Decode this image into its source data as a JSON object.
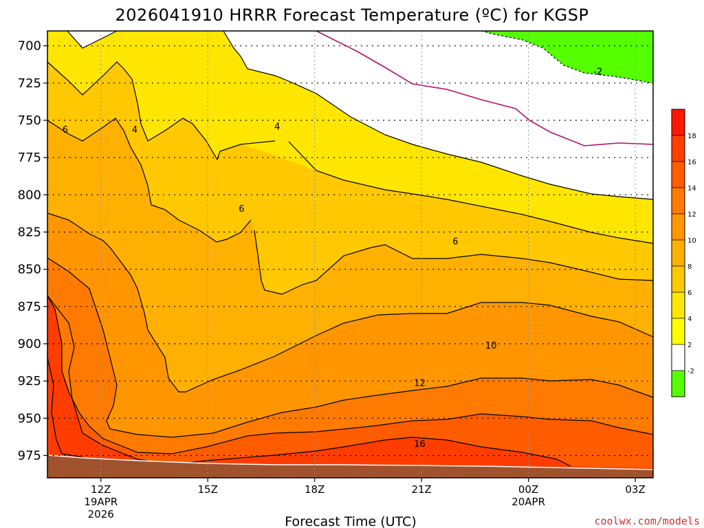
{
  "chart_data": {
    "type": "area",
    "title": "2026041910 HRRR Forecast Temperature (ºC) for KGSP",
    "xlabel": "Forecast Time (UTC)",
    "ylabel": "",
    "y_axis": "pressure (inverted)",
    "ylim": [
      990,
      690
    ],
    "xlim": [
      10.5,
      27.5
    ],
    "yticks": [
      700,
      725,
      750,
      775,
      800,
      825,
      850,
      875,
      900,
      925,
      950,
      975
    ],
    "xticks": [
      {
        "x": 12,
        "label": "12Z",
        "sub": [
          "19APR",
          "2026"
        ]
      },
      {
        "x": 15,
        "label": "15Z",
        "sub": []
      },
      {
        "x": 18,
        "label": "18Z",
        "sub": []
      },
      {
        "x": 21,
        "label": "21Z",
        "sub": []
      },
      {
        "x": 24,
        "label": "00Z",
        "sub": [
          "20APR"
        ]
      },
      {
        "x": 27,
        "label": "03Z",
        "sub": []
      }
    ],
    "grid": true,
    "credit": "coolwx.com/models",
    "colorbar": {
      "levels": [
        18,
        16,
        14,
        12,
        10,
        8,
        6,
        4,
        2,
        -2
      ],
      "colors": [
        "#ff1800",
        "#ff3d00",
        "#ff5c00",
        "#ff7a00",
        "#ff9600",
        "#ffb000",
        "#ffc800",
        "#ffe600",
        "#ffff00",
        "#ffffff",
        "#55ff00"
      ]
    },
    "contour_labels": [
      {
        "x": 11.0,
        "p": 756,
        "text": "6"
      },
      {
        "x": 12.95,
        "p": 756,
        "text": "4"
      },
      {
        "x": 16.95,
        "p": 754,
        "text": "4"
      },
      {
        "x": 15.95,
        "p": 809,
        "text": "6"
      },
      {
        "x": 21.95,
        "p": 831,
        "text": "6"
      },
      {
        "x": 22.95,
        "p": 901,
        "text": "10"
      },
      {
        "x": 20.95,
        "p": 926,
        "text": "12"
      },
      {
        "x": 20.95,
        "p": 967,
        "text": "16"
      },
      {
        "x": 25.95,
        "p": 717,
        "text": "-2"
      }
    ]
  }
}
